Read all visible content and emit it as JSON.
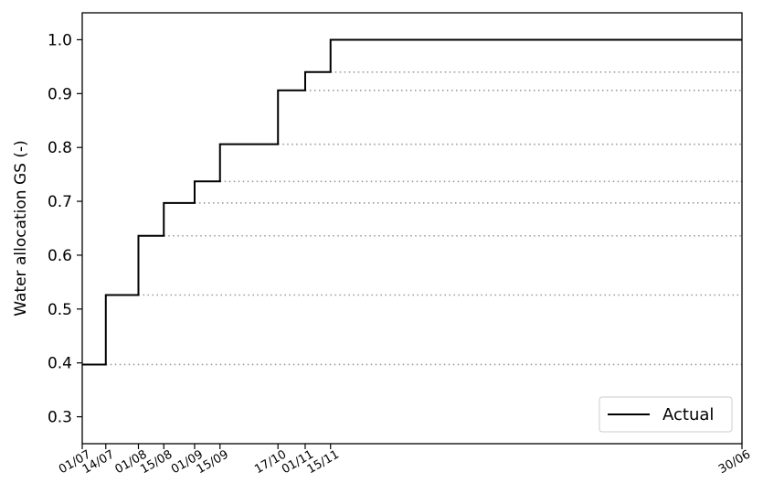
{
  "chart_data": {
    "type": "line",
    "title": "",
    "xlabel": "",
    "ylabel": "Water allocation GS (-)",
    "x_ticks": [
      "01/07",
      "14/07",
      "01/08",
      "15/08",
      "01/09",
      "15/09",
      "17/10",
      "01/11",
      "15/11",
      "30/06"
    ],
    "x_tick_days": [
      0,
      13,
      31,
      45,
      62,
      76,
      108,
      123,
      137,
      364
    ],
    "xlim_days": [
      0,
      364
    ],
    "ylim": [
      0.25,
      1.05
    ],
    "y_ticks": [
      "0.3",
      "0.4",
      "0.5",
      "0.6",
      "0.7",
      "0.8",
      "0.9",
      "1.0"
    ],
    "y_tick_values": [
      0.3,
      0.4,
      0.5,
      0.6,
      0.7,
      0.8,
      0.9,
      1.0
    ],
    "series": [
      {
        "name": "Actual",
        "style": "step-post",
        "color": "#000000",
        "x_days": [
          0,
          13,
          31,
          45,
          62,
          76,
          108,
          123,
          137,
          364
        ],
        "values": [
          0.397,
          0.526,
          0.636,
          0.697,
          0.737,
          0.806,
          0.906,
          0.94,
          1.0,
          1.0
        ]
      }
    ],
    "reference_lines": {
      "style": "dotted",
      "color": "#999999",
      "values": [
        0.397,
        0.526,
        0.636,
        0.697,
        0.737,
        0.806,
        0.906,
        0.94
      ],
      "start_days": [
        13,
        31,
        45,
        62,
        76,
        108,
        123,
        137
      ]
    },
    "grid": false,
    "legend_position": "lower-right"
  }
}
